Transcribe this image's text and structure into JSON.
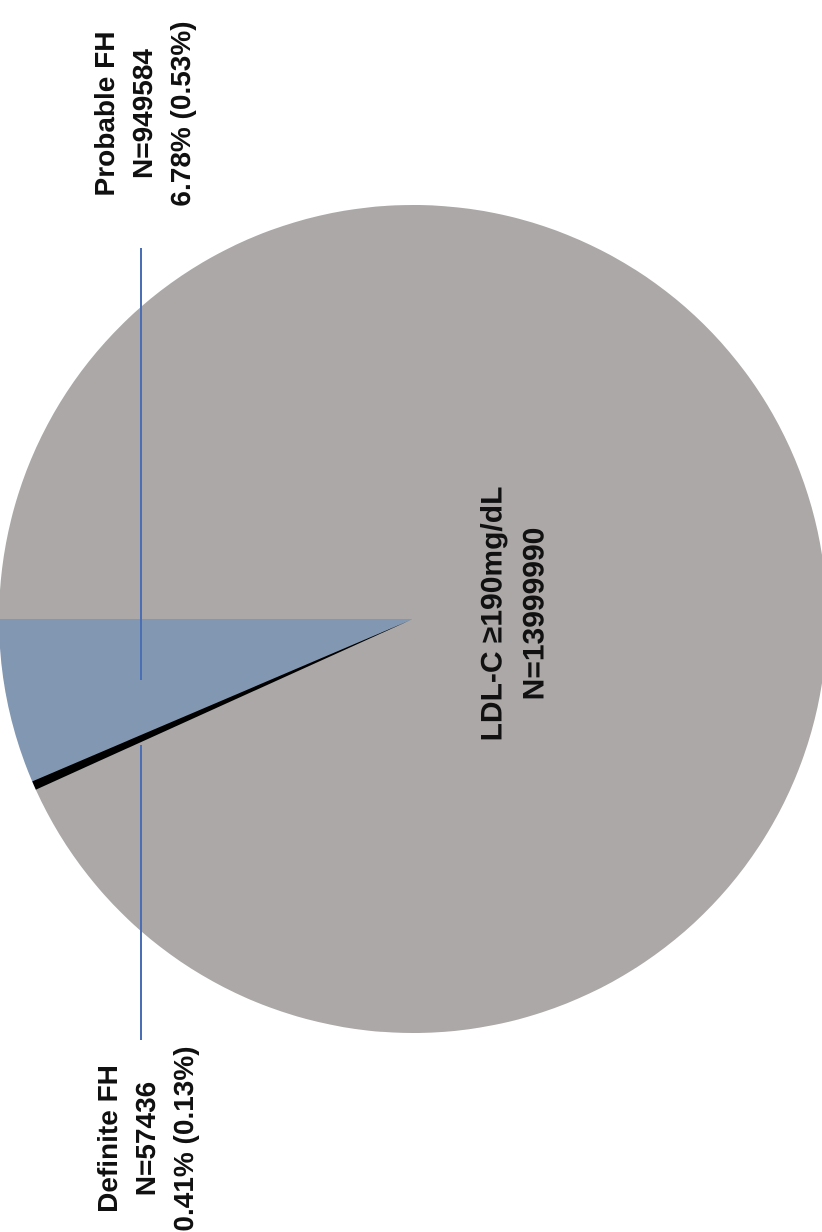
{
  "chart_data": {
    "type": "pie",
    "orientation": "rotated 90 degrees counter-clockwise",
    "slices": [
      {
        "key": "main",
        "lines": [
          "LDL-C ≥190mg/dL",
          "N=13999990"
        ],
        "n": 13999990,
        "color": "#aba8a7"
      },
      {
        "key": "probable",
        "lines": [
          "Probable FH",
          "N=949584",
          "6.78% (0.53%)"
        ],
        "n": 949584,
        "percent": 6.78,
        "percent_total": 0.53,
        "color": "#8197b2"
      },
      {
        "key": "definite",
        "lines": [
          "Definite FH",
          "N=57436",
          "0.41% (0.13%)"
        ],
        "n": 57436,
        "percent": 0.41,
        "percent_total": 0.13,
        "color": "#000000"
      }
    ],
    "leader_line_color": "#4a6fb5",
    "legend": "none"
  }
}
